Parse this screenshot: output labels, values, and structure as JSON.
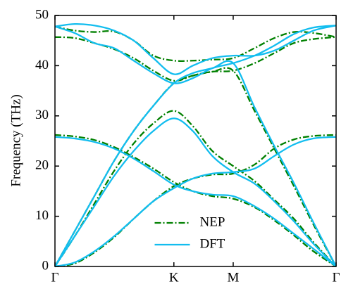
{
  "chart_data": {
    "type": "line",
    "ylabel": "Frequency (THz)",
    "x": [
      0,
      0.07,
      0.14,
      0.21,
      0.28,
      0.35,
      0.423,
      0.49,
      0.56,
      0.634,
      0.71,
      0.78,
      0.85,
      0.92,
      1
    ],
    "xlim": [
      0,
      1
    ],
    "xticks": [
      {
        "value": 0,
        "label": "Γ"
      },
      {
        "value": 0.423,
        "label": "K"
      },
      {
        "value": 0.634,
        "label": "M"
      },
      {
        "value": 1,
        "label": "Γ"
      }
    ],
    "ylim": [
      0,
      50
    ],
    "yticks": [
      0,
      10,
      20,
      30,
      40,
      50
    ],
    "legend": "lower center",
    "series": [
      {
        "name": "NEP",
        "color": "#008000",
        "style": "dashdot",
        "branches": [
          [
            0,
            0.6,
            2.8,
            5.8,
            9.5,
            13,
            16,
            17.5,
            18.3,
            18.5,
            20.3,
            23.5,
            25.3,
            26,
            26.2
          ],
          [
            26.2,
            25.9,
            25.2,
            23.8,
            21.8,
            19.5,
            16.8,
            15,
            14,
            13.5,
            11.8,
            9.2,
            6.2,
            3,
            0
          ],
          [
            0,
            6,
            12.5,
            19,
            24.5,
            28.5,
            31,
            28,
            23,
            20,
            17,
            13.3,
            9.5,
            4.8,
            0
          ],
          [
            47.8,
            47,
            46.7,
            46.8,
            45,
            42,
            41,
            41,
            41.2,
            41.5,
            43.5,
            45.5,
            46.7,
            46.5,
            45.7
          ],
          [
            0,
            7,
            14,
            21,
            27,
            32,
            36.5,
            38,
            38.8,
            39,
            31,
            23.5,
            16,
            8.3,
            0
          ],
          [
            45.7,
            45.5,
            44.5,
            43.3,
            41.5,
            39,
            37,
            38,
            38.8,
            39,
            40.5,
            42.5,
            44.5,
            45.3,
            45.7
          ]
        ]
      },
      {
        "name": "DFT",
        "color": "#12bdef",
        "style": "solid",
        "branches": [
          [
            0,
            0.8,
            3,
            6,
            9.5,
            13,
            15.6,
            17.5,
            18.5,
            18.8,
            19.5,
            22,
            24.3,
            25.5,
            25.8
          ],
          [
            25.8,
            25.5,
            24.8,
            23.5,
            21.5,
            19,
            16.3,
            15,
            14.3,
            14,
            12,
            9.5,
            6.5,
            3.5,
            0
          ],
          [
            0,
            6,
            12,
            18,
            23,
            27,
            29.5,
            27,
            22,
            18.8,
            16.5,
            13,
            9,
            4.5,
            0
          ],
          [
            47.8,
            48.3,
            48,
            47,
            45,
            41.5,
            38.3,
            40,
            41.5,
            42,
            42,
            43,
            45,
            47,
            48
          ],
          [
            0,
            7,
            14,
            21,
            27,
            32,
            36.5,
            38.5,
            39.5,
            40.5,
            31.7,
            24,
            16.6,
            8.7,
            0
          ],
          [
            47.8,
            46.5,
            44.5,
            43.5,
            41,
            38.5,
            36.5,
            37.5,
            39.5,
            40.5,
            42,
            44,
            46.3,
            47.6,
            48
          ]
        ]
      }
    ]
  }
}
